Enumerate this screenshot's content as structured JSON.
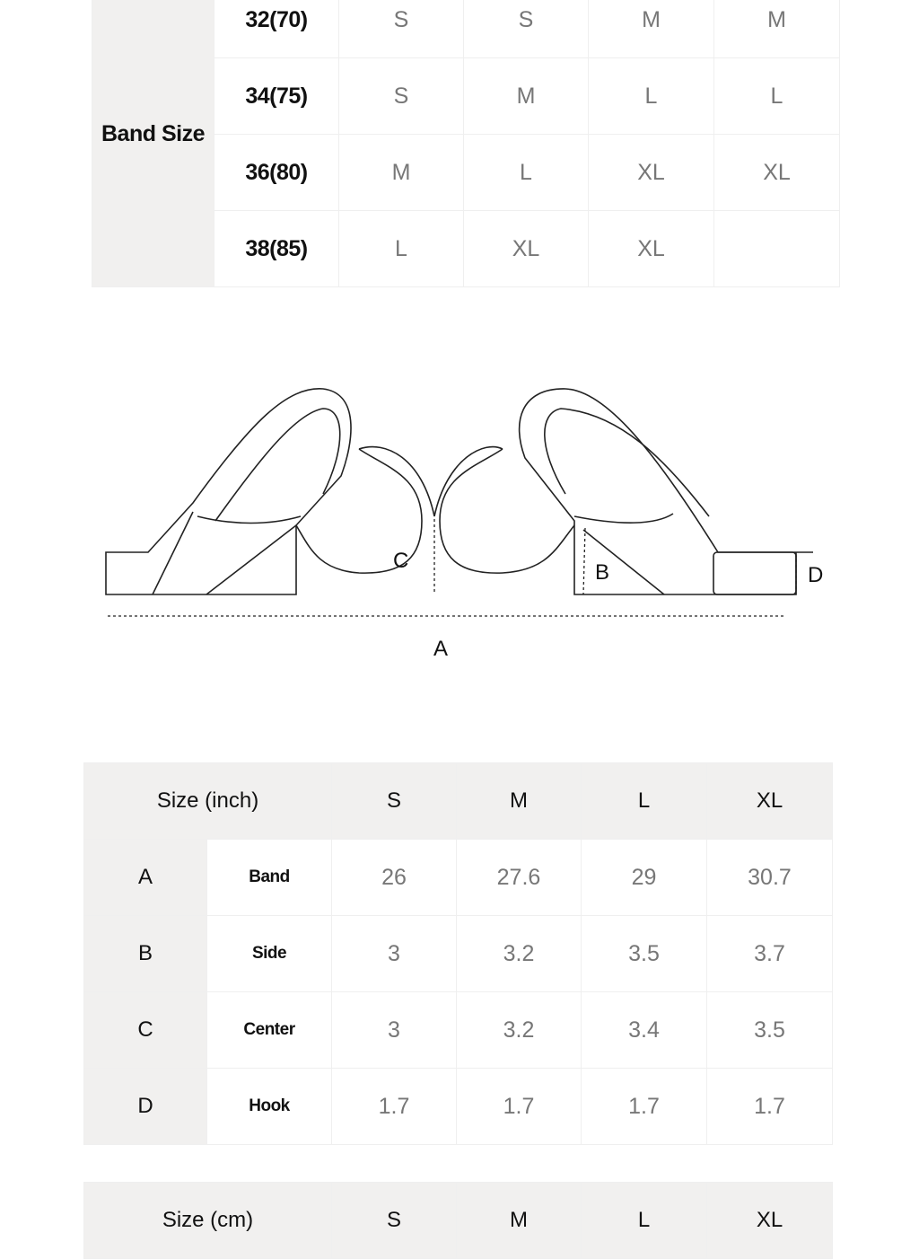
{
  "band_table": {
    "row_label": "Band Size",
    "rows": [
      {
        "band": "32(70)",
        "sizes": [
          "S",
          "S",
          "M",
          "M"
        ]
      },
      {
        "band": "34(75)",
        "sizes": [
          "S",
          "M",
          "L",
          "L"
        ]
      },
      {
        "band": "36(80)",
        "sizes": [
          "M",
          "L",
          "XL",
          "XL"
        ]
      },
      {
        "band": "38(85)",
        "sizes": [
          "L",
          "XL",
          "XL",
          ""
        ]
      }
    ]
  },
  "diagram": {
    "labels": {
      "a": "A",
      "b": "B",
      "c": "C",
      "d": "D"
    }
  },
  "inch_table": {
    "header": "Size (inch)",
    "sizes": [
      "S",
      "M",
      "L",
      "XL"
    ],
    "rows": [
      {
        "letter": "A",
        "name": "Band",
        "values": [
          "26",
          "27.6",
          "29",
          "30.7"
        ]
      },
      {
        "letter": "B",
        "name": "Side",
        "values": [
          "3",
          "3.2",
          "3.5",
          "3.7"
        ]
      },
      {
        "letter": "C",
        "name": "Center",
        "values": [
          "3",
          "3.2",
          "3.4",
          "3.5"
        ]
      },
      {
        "letter": "D",
        "name": "Hook",
        "values": [
          "1.7",
          "1.7",
          "1.7",
          "1.7"
        ]
      }
    ]
  },
  "cm_table": {
    "header": "Size (cm)",
    "sizes": [
      "S",
      "M",
      "L",
      "XL"
    ]
  }
}
